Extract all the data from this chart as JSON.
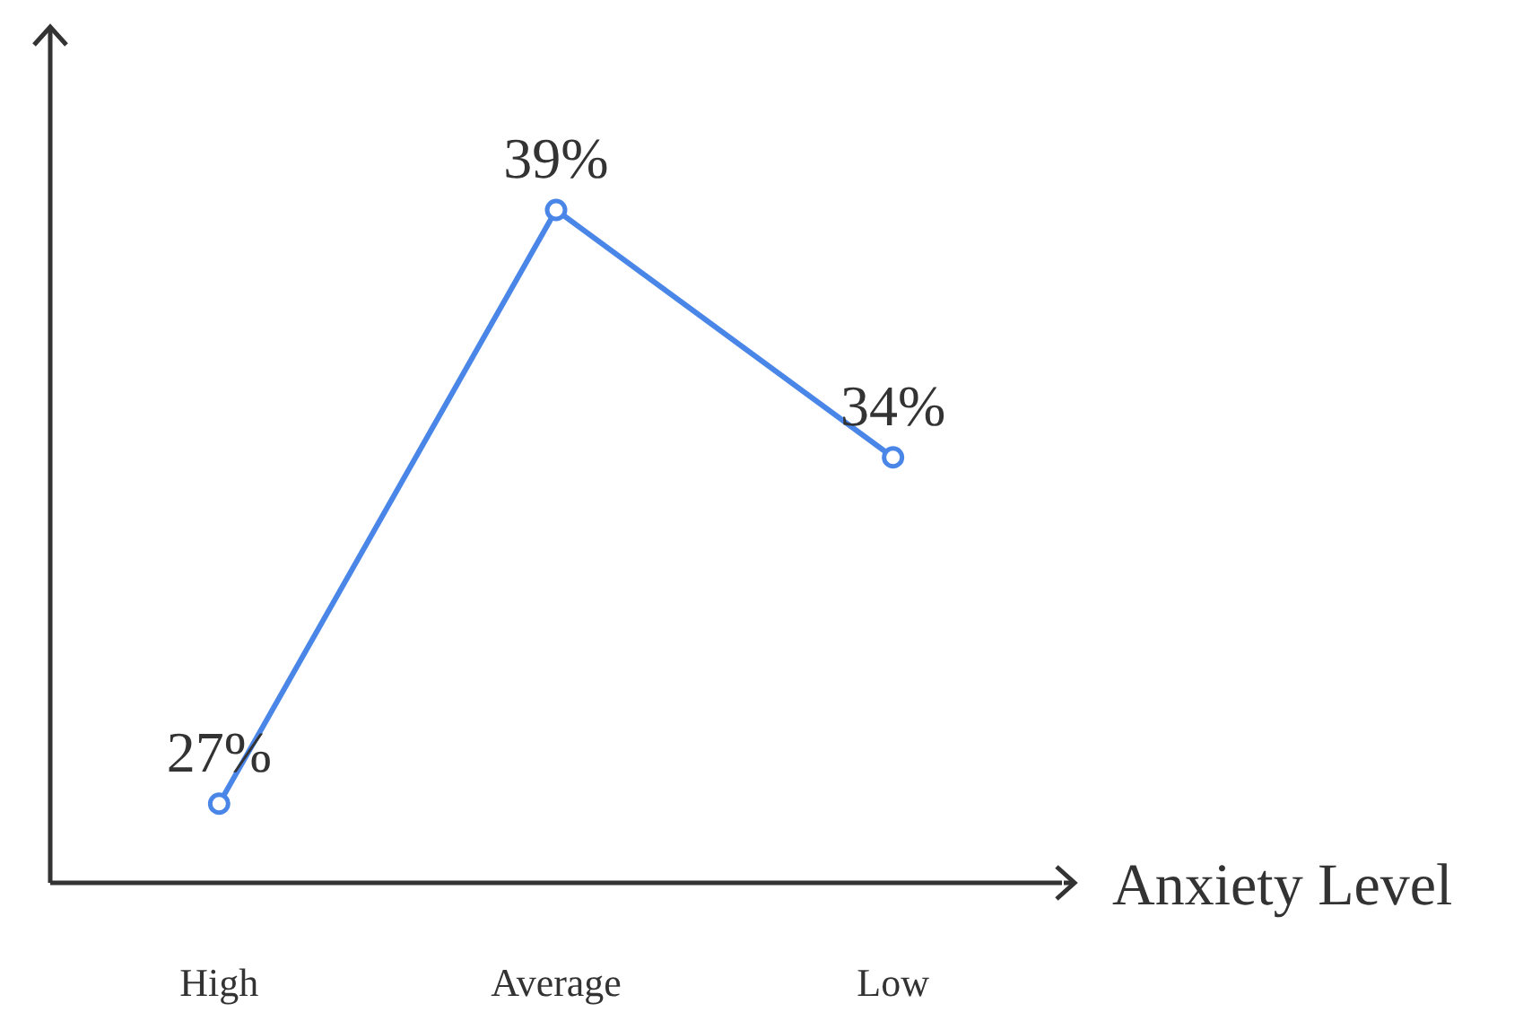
{
  "chart_data": {
    "type": "line",
    "xlabel": "Anxiety Level",
    "categories": [
      "High",
      "Average",
      "Low"
    ],
    "series": [
      {
        "color": "#4a86e8",
        "values": [
          27,
          39,
          34
        ],
        "value_labels": [
          "27%",
          "39%",
          "34%"
        ]
      }
    ],
    "ylim": [
      25.4,
      42.7
    ],
    "marker": "circle",
    "line_style": "solid"
  }
}
